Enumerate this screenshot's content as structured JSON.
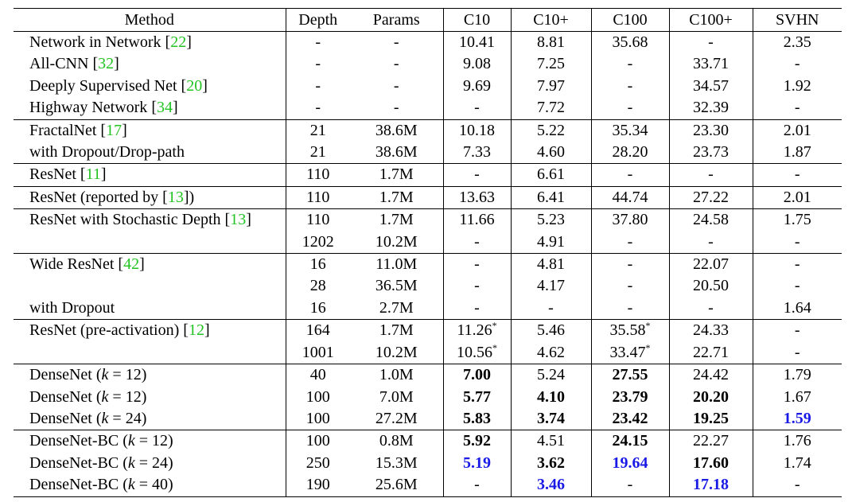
{
  "headers": [
    "Method",
    "Depth",
    "Params",
    "C10",
    "C10+",
    "C100",
    "C100+",
    "SVHN"
  ],
  "groups": [
    {
      "rows": [
        {
          "method": "Network in Network",
          "cite": "22",
          "suffix": "",
          "depth": "-",
          "params": "-",
          "c10": "10.41",
          "c10p": "8.81",
          "c100": "35.68",
          "c100p": "-",
          "svhn": "2.35"
        },
        {
          "method": "All-CNN",
          "cite": "32",
          "suffix": "",
          "depth": "-",
          "params": "-",
          "c10": "9.08",
          "c10p": "7.25",
          "c100": "-",
          "c100p": "33.71",
          "svhn": "-"
        },
        {
          "method": "Deeply Supervised Net",
          "cite": "20",
          "suffix": "",
          "depth": "-",
          "params": "-",
          "c10": "9.69",
          "c10p": "7.97",
          "c100": "-",
          "c100p": "34.57",
          "svhn": "1.92"
        },
        {
          "method": "Highway Network",
          "cite": "34",
          "suffix": "",
          "depth": "-",
          "params": "-",
          "c10": "-",
          "c10p": "7.72",
          "c100": "-",
          "c100p": "32.39",
          "svhn": "-"
        }
      ]
    },
    {
      "rows": [
        {
          "method": "FractalNet",
          "cite": "17",
          "suffix": "",
          "depth": "21",
          "params": "38.6M",
          "c10": "10.18",
          "c10p": "5.22",
          "c100": "35.34",
          "c100p": "23.30",
          "svhn": "2.01"
        },
        {
          "method": "with Dropout/Drop-path",
          "cite": "",
          "suffix": "",
          "depth": "21",
          "params": "38.6M",
          "c10": "7.33",
          "c10p": "4.60",
          "c100": "28.20",
          "c100p": "23.73",
          "svhn": "1.87"
        }
      ]
    },
    {
      "rows": [
        {
          "method": "ResNet",
          "cite": "11",
          "suffix": "",
          "depth": "110",
          "params": "1.7M",
          "c10": "-",
          "c10p": "6.61",
          "c100": "-",
          "c100p": "-",
          "svhn": "-"
        }
      ]
    },
    {
      "rows": [
        {
          "method": "ResNet (reported by",
          "cite": "13",
          "suffix": ")",
          "depth": "110",
          "params": "1.7M",
          "c10": "13.63",
          "c10p": "6.41",
          "c100": "44.74",
          "c100p": "27.22",
          "svhn": "2.01"
        }
      ]
    },
    {
      "rows": [
        {
          "method": "ResNet with Stochastic Depth",
          "cite": "13",
          "suffix": "",
          "depth": "110",
          "params": "1.7M",
          "c10": "11.66",
          "c10p": "5.23",
          "c100": "37.80",
          "c100p": "24.58",
          "svhn": "1.75"
        },
        {
          "method": "",
          "cite": "",
          "suffix": "",
          "depth": "1202",
          "params": "10.2M",
          "c10": "-",
          "c10p": "4.91",
          "c100": "-",
          "c100p": "-",
          "svhn": "-"
        }
      ]
    },
    {
      "rows": [
        {
          "method": "Wide ResNet",
          "cite": "42",
          "suffix": "",
          "depth": "16",
          "params": "11.0M",
          "c10": "-",
          "c10p": "4.81",
          "c100": "-",
          "c100p": "22.07",
          "svhn": "-"
        },
        {
          "method": "",
          "cite": "",
          "suffix": "",
          "depth": "28",
          "params": "36.5M",
          "c10": "-",
          "c10p": "4.17",
          "c100": "-",
          "c100p": "20.50",
          "svhn": "-"
        },
        {
          "method": "with Dropout",
          "cite": "",
          "suffix": "",
          "depth": "16",
          "params": "2.7M",
          "c10": "-",
          "c10p": "-",
          "c100": "-",
          "c100p": "-",
          "svhn": "1.64"
        }
      ]
    },
    {
      "rows": [
        {
          "method": "ResNet (pre-activation)",
          "cite": "12",
          "suffix": "",
          "depth": "164",
          "params": "1.7M",
          "c10": "11.26",
          "c10_star": "*",
          "c10p": "5.46",
          "c100": "35.58",
          "c100_star": "*",
          "c100p": "24.33",
          "svhn": "-"
        },
        {
          "method": "",
          "cite": "",
          "suffix": "",
          "depth": "1001",
          "params": "10.2M",
          "c10": "10.56",
          "c10_star": "*",
          "c10p": "4.62",
          "c100": "33.47",
          "c100_star": "*",
          "c100p": "22.71",
          "svhn": "-"
        }
      ]
    },
    {
      "rows": [
        {
          "method": "DenseNet (",
          "k_label": "k",
          "k_value": " = 12)",
          "depth": "40",
          "params": "1.0M",
          "c10": "7.00",
          "c10_style": "bold",
          "c10p": "5.24",
          "c100": "27.55",
          "c100_style": "bold",
          "c100p": "24.42",
          "svhn": "1.79"
        },
        {
          "method": "DenseNet (",
          "k_label": "k",
          "k_value": " = 12)",
          "depth": "100",
          "params": "7.0M",
          "c10": "5.77",
          "c10_style": "bold",
          "c10p": "4.10",
          "c10p_style": "bold",
          "c100": "23.79",
          "c100_style": "bold",
          "c100p": "20.20",
          "c100p_style": "bold",
          "svhn": "1.67"
        },
        {
          "method": "DenseNet (",
          "k_label": "k",
          "k_value": " = 24)",
          "depth": "100",
          "params": "27.2M",
          "c10": "5.83",
          "c10_style": "bold",
          "c10p": "3.74",
          "c10p_style": "bold",
          "c100": "23.42",
          "c100_style": "bold",
          "c100p": "19.25",
          "c100p_style": "bold",
          "svhn": "1.59",
          "svhn_style": "blue"
        }
      ]
    },
    {
      "rows": [
        {
          "method": "DenseNet-BC (",
          "k_label": "k",
          "k_value": " = 12)",
          "depth": "100",
          "params": "0.8M",
          "c10": "5.92",
          "c10_style": "bold",
          "c10p": "4.51",
          "c100": "24.15",
          "c100_style": "bold",
          "c100p": "22.27",
          "svhn": "1.76"
        },
        {
          "method": "DenseNet-BC (",
          "k_label": "k",
          "k_value": " = 24)",
          "depth": "250",
          "params": "15.3M",
          "c10": "5.19",
          "c10_style": "blue",
          "c10p": "3.62",
          "c10p_style": "bold",
          "c100": "19.64",
          "c100_style": "blue",
          "c100p": "17.60",
          "c100p_style": "bold",
          "svhn": "1.74"
        },
        {
          "method": "DenseNet-BC (",
          "k_label": "k",
          "k_value": " = 40)",
          "depth": "190",
          "params": "25.6M",
          "c10": "-",
          "c10p": "3.46",
          "c10p_style": "blue",
          "c100": "-",
          "c100p": "17.18",
          "c100p_style": "blue",
          "svhn": "-"
        }
      ]
    }
  ],
  "colors": {
    "citation": "#22c322",
    "best": "#1a1ae6"
  }
}
